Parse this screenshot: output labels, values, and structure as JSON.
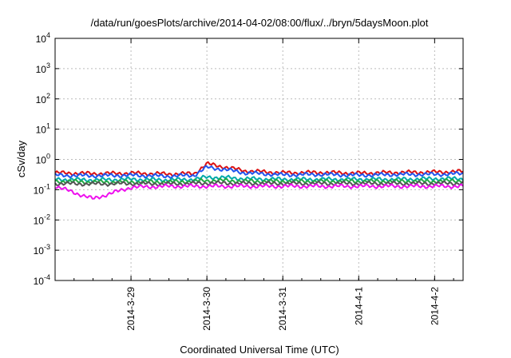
{
  "chart_data": {
    "type": "line",
    "title": "/data/run/goesPlots/archive/2014-04-02/08:00/flux/../bryn/5daysMoon.plot",
    "xlabel": "Coordinated Universal Time (UTC)",
    "ylabel": "cSv/day",
    "yscale": "log",
    "ylim": [
      0.0001,
      10000
    ],
    "y_ticks": [
      {
        "base": "10",
        "exp": "-4",
        "value": 0.0001
      },
      {
        "base": "10",
        "exp": "-3",
        "value": 0.001
      },
      {
        "base": "10",
        "exp": "-2",
        "value": 0.01
      },
      {
        "base": "10",
        "exp": "-1",
        "value": 0.1
      },
      {
        "base": "10",
        "exp": "0",
        "value": 1
      },
      {
        "base": "10",
        "exp": "1",
        "value": 10
      },
      {
        "base": "10",
        "exp": "2",
        "value": 100
      },
      {
        "base": "10",
        "exp": "3",
        "value": 1000
      },
      {
        "base": "10",
        "exp": "4",
        "value": 10000
      }
    ],
    "x_ticks": [
      "2014-3-29",
      "2014-3-30",
      "2014-3-31",
      "2014-4-1",
      "2014-4-2"
    ],
    "xlim": [
      "2014-03-28 00:00",
      "2014-04-02 09:00"
    ],
    "grid": true,
    "series_colors": [
      "#dd1111",
      "#2255ee",
      "#00aaaa",
      "#22aa44",
      "#555555",
      "#ee11ee"
    ],
    "series": [
      {
        "color": "#dd1111",
        "x": [
          "2014-03-28 00:00",
          "2014-03-28 12:00",
          "2014-03-29 00:00",
          "2014-03-29 12:00",
          "2014-03-29 20:00",
          "2014-03-30 00:00",
          "2014-03-30 06:00",
          "2014-03-30 12:00",
          "2014-03-31 00:00",
          "2014-03-31 12:00",
          "2014-04-01 00:00",
          "2014-04-01 12:00",
          "2014-04-02 00:00",
          "2014-04-02 09:00"
        ],
        "values": [
          0.36,
          0.34,
          0.35,
          0.33,
          0.34,
          0.72,
          0.55,
          0.42,
          0.36,
          0.37,
          0.35,
          0.37,
          0.38,
          0.4
        ]
      },
      {
        "color": "#2255ee",
        "x": [
          "2014-03-28 00:00",
          "2014-03-28 12:00",
          "2014-03-29 00:00",
          "2014-03-29 12:00",
          "2014-03-29 20:00",
          "2014-03-30 00:00",
          "2014-03-30 06:00",
          "2014-03-30 12:00",
          "2014-03-31 00:00",
          "2014-03-31 12:00",
          "2014-04-01 00:00",
          "2014-04-01 12:00",
          "2014-04-02 00:00",
          "2014-04-02 09:00"
        ],
        "values": [
          0.3,
          0.29,
          0.3,
          0.28,
          0.3,
          0.55,
          0.46,
          0.36,
          0.31,
          0.32,
          0.3,
          0.32,
          0.32,
          0.34
        ]
      },
      {
        "color": "#00aaaa",
        "x": [
          "2014-03-28 00:00",
          "2014-03-28 12:00",
          "2014-03-29 00:00",
          "2014-03-29 12:00",
          "2014-03-29 20:00",
          "2014-03-30 00:00",
          "2014-03-30 06:00",
          "2014-03-30 12:00",
          "2014-03-31 00:00",
          "2014-03-31 12:00",
          "2014-04-01 00:00",
          "2014-04-01 12:00",
          "2014-04-02 00:00",
          "2014-04-02 09:00"
        ],
        "values": [
          0.22,
          0.21,
          0.22,
          0.21,
          0.22,
          0.26,
          0.25,
          0.23,
          0.22,
          0.22,
          0.22,
          0.22,
          0.23,
          0.23
        ]
      },
      {
        "color": "#22aa44",
        "x": [
          "2014-03-28 00:00",
          "2014-03-28 12:00",
          "2014-03-29 00:00",
          "2014-03-29 12:00",
          "2014-03-29 20:00",
          "2014-03-30 00:00",
          "2014-03-30 06:00",
          "2014-03-30 12:00",
          "2014-03-31 00:00",
          "2014-03-31 12:00",
          "2014-04-01 00:00",
          "2014-04-01 12:00",
          "2014-04-02 00:00",
          "2014-04-02 09:00"
        ],
        "values": [
          0.19,
          0.18,
          0.18,
          0.18,
          0.19,
          0.2,
          0.2,
          0.19,
          0.19,
          0.19,
          0.19,
          0.19,
          0.19,
          0.2
        ]
      },
      {
        "color": "#555555",
        "x": [
          "2014-03-28 00:00",
          "2014-03-28 12:00",
          "2014-03-29 00:00",
          "2014-03-29 12:00",
          "2014-03-29 20:00",
          "2014-03-30 00:00",
          "2014-03-30 06:00",
          "2014-03-30 12:00",
          "2014-03-31 00:00",
          "2014-03-31 12:00",
          "2014-04-01 00:00",
          "2014-04-01 12:00",
          "2014-04-02 00:00",
          "2014-04-02 09:00"
        ],
        "values": [
          0.16,
          0.155,
          0.16,
          0.155,
          0.16,
          0.165,
          0.165,
          0.16,
          0.16,
          0.16,
          0.16,
          0.16,
          0.16,
          0.165
        ]
      },
      {
        "color": "#ee11ee",
        "x": [
          "2014-03-28 00:00",
          "2014-03-28 12:00",
          "2014-03-29 00:00",
          "2014-03-29 12:00",
          "2014-03-29 20:00",
          "2014-03-30 00:00",
          "2014-03-30 06:00",
          "2014-03-30 12:00",
          "2014-03-31 00:00",
          "2014-03-31 12:00",
          "2014-04-01 00:00",
          "2014-04-01 12:00",
          "2014-04-02 00:00",
          "2014-04-02 09:00"
        ],
        "values": [
          0.13,
          0.05,
          0.12,
          0.13,
          0.13,
          0.13,
          0.13,
          0.13,
          0.13,
          0.13,
          0.13,
          0.13,
          0.13,
          0.13
        ]
      }
    ]
  }
}
